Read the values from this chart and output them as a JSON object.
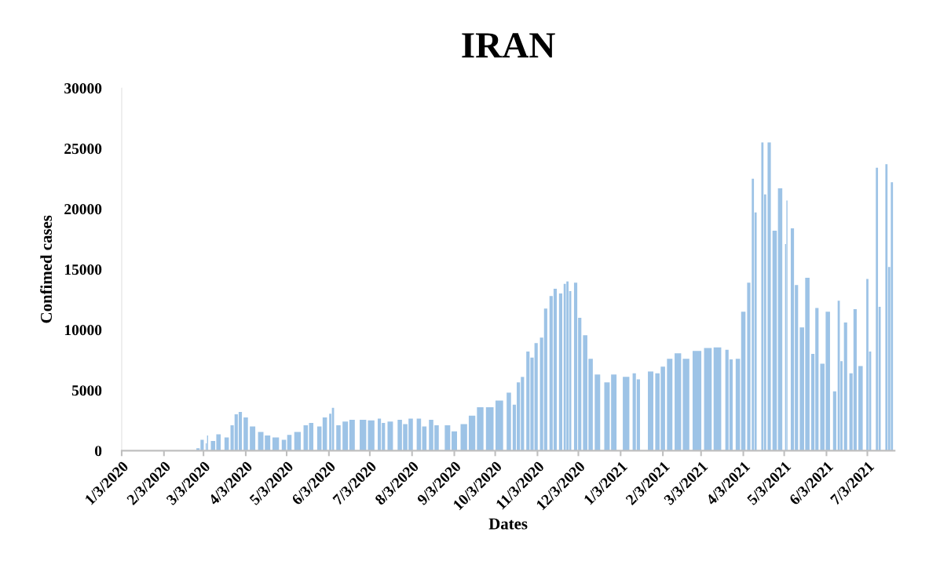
{
  "chart_data": {
    "type": "bar",
    "title": "IRAN",
    "xlabel": "Dates",
    "ylabel": "Confimed cases",
    "color": "#9dc3e6",
    "x": [
      "2020-02-28",
      "2020-03-02",
      "2020-03-05",
      "2020-03-06",
      "2020-03-10",
      "2020-03-14",
      "2020-03-20",
      "2020-03-24",
      "2020-03-27",
      "2020-03-30",
      "2020-04-03",
      "2020-04-08",
      "2020-04-14",
      "2020-04-19",
      "2020-04-25",
      "2020-05-01",
      "2020-05-05",
      "2020-05-11",
      "2020-05-17",
      "2020-05-21",
      "2020-05-27",
      "2020-05-31",
      "2020-06-04",
      "2020-06-06",
      "2020-06-10",
      "2020-06-15",
      "2020-06-20",
      "2020-06-28",
      "2020-07-04",
      "2020-07-10",
      "2020-07-13",
      "2020-07-18",
      "2020-07-25",
      "2020-07-29",
      "2020-08-02",
      "2020-08-08",
      "2020-08-12",
      "2020-08-17",
      "2020-08-21",
      "2020-08-29",
      "2020-09-03",
      "2020-09-10",
      "2020-09-16",
      "2020-09-22",
      "2020-09-29",
      "2020-10-06",
      "2020-10-13",
      "2020-10-17",
      "2020-10-20",
      "2020-10-23",
      "2020-10-27",
      "2020-10-30",
      "2020-11-02",
      "2020-11-06",
      "2020-11-09",
      "2020-11-13",
      "2020-11-16",
      "2020-11-20",
      "2020-11-23",
      "2020-11-25",
      "2020-11-27",
      "2020-12-01",
      "2020-12-04",
      "2020-12-08",
      "2020-12-12",
      "2020-12-17",
      "2020-12-24",
      "2020-12-29",
      "2021-01-07",
      "2021-01-13",
      "2021-01-16",
      "2021-01-25",
      "2021-01-30",
      "2021-02-03",
      "2021-02-08",
      "2021-02-14",
      "2021-02-20",
      "2021-02-28",
      "2021-03-08",
      "2021-03-15",
      "2021-03-22",
      "2021-03-25",
      "2021-03-30",
      "2021-04-03",
      "2021-04-07",
      "2021-04-10",
      "2021-04-12",
      "2021-04-17",
      "2021-04-19",
      "2021-04-22",
      "2021-04-26",
      "2021-04-30",
      "2021-05-04",
      "2021-05-05",
      "2021-05-09",
      "2021-05-12",
      "2021-05-16",
      "2021-05-20",
      "2021-05-24",
      "2021-05-27",
      "2021-05-31",
      "2021-06-04",
      "2021-06-09",
      "2021-06-12",
      "2021-06-14",
      "2021-06-17",
      "2021-06-21",
      "2021-06-24",
      "2021-06-28",
      "2021-07-03",
      "2021-07-05",
      "2021-07-10",
      "2021-07-12",
      "2021-07-17",
      "2021-07-19",
      "2021-07-21"
    ],
    "values": [
      200,
      900,
      600,
      1250,
      800,
      1350,
      1100,
      2100,
      3000,
      3200,
      2750,
      2000,
      1550,
      1250,
      1100,
      900,
      1300,
      1550,
      2100,
      2300,
      2000,
      2750,
      3050,
      3550,
      2100,
      2400,
      2550,
      2550,
      2500,
      2650,
      2300,
      2400,
      2550,
      2200,
      2650,
      2650,
      2000,
      2550,
      2100,
      2100,
      1600,
      2200,
      2900,
      3600,
      3600,
      4150,
      4800,
      3800,
      5650,
      6100,
      8200,
      7700,
      8900,
      9350,
      11750,
      12800,
      13400,
      13000,
      13800,
      14000,
      13200,
      13900,
      11000,
      9550,
      7600,
      6300,
      5650,
      6300,
      6100,
      6400,
      5900,
      6550,
      6400,
      6950,
      7600,
      8050,
      7600,
      8250,
      8500,
      8550,
      8350,
      7550,
      7600,
      11500,
      13900,
      22500,
      19700,
      25500,
      21200,
      25500,
      18200,
      21700,
      17100,
      20700,
      18400,
      13700,
      10200,
      14300,
      8000,
      11800,
      7200,
      11500,
      4900,
      12400,
      7400,
      10600,
      6400,
      11700,
      7000,
      14200,
      8200,
      23400,
      11900,
      23700,
      15200,
      22200
    ],
    "xlim": [
      "2020-01-03",
      "2021-07-23"
    ],
    "xticks": [
      {
        "value": "2020-01-03",
        "label": "1/3/2020"
      },
      {
        "value": "2020-02-03",
        "label": "2/3/2020"
      },
      {
        "value": "2020-03-03",
        "label": "3/3/2020"
      },
      {
        "value": "2020-04-03",
        "label": "4/3/2020"
      },
      {
        "value": "2020-05-03",
        "label": "5/3/2020"
      },
      {
        "value": "2020-06-03",
        "label": "6/3/2020"
      },
      {
        "value": "2020-07-03",
        "label": "7/3/2020"
      },
      {
        "value": "2020-08-03",
        "label": "8/3/2020"
      },
      {
        "value": "2020-09-03",
        "label": "9/3/2020"
      },
      {
        "value": "2020-10-03",
        "label": "10/3/2020"
      },
      {
        "value": "2020-11-03",
        "label": "11/3/2020"
      },
      {
        "value": "2020-12-03",
        "label": "12/3/2020"
      },
      {
        "value": "2021-01-03",
        "label": "1/3/2021"
      },
      {
        "value": "2021-02-03",
        "label": "2/3/2021"
      },
      {
        "value": "2021-03-03",
        "label": "3/3/2021"
      },
      {
        "value": "2021-04-03",
        "label": "4/3/2021"
      },
      {
        "value": "2021-05-03",
        "label": "5/3/2021"
      },
      {
        "value": "2021-06-03",
        "label": "6/3/2021"
      },
      {
        "value": "2021-07-03",
        "label": "7/3/2021"
      }
    ],
    "ylim": [
      0,
      30000
    ],
    "yticks": [
      0,
      5000,
      10000,
      15000,
      20000,
      25000,
      30000
    ],
    "grid": false,
    "legend": false
  }
}
